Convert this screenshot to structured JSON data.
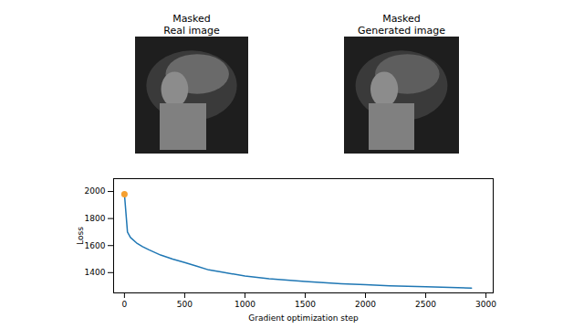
{
  "images": [
    {
      "title_lines": [
        "Masked",
        "Real image"
      ]
    },
    {
      "title_lines": [
        "Masked",
        "Generated image"
      ]
    }
  ],
  "chart_data": {
    "type": "line",
    "x_label": "Gradient optimization step",
    "y_label": "Loss",
    "x": [
      0,
      25,
      50,
      100,
      150,
      200,
      300,
      400,
      500,
      600,
      700,
      800,
      1000,
      1200,
      1500,
      1800,
      2000,
      2200,
      2500,
      2700,
      2880
    ],
    "series": [
      {
        "name": "Loss",
        "color": "#1f77b4",
        "values": [
          1980,
          1700,
          1660,
          1620,
          1592,
          1570,
          1530,
          1500,
          1475,
          1448,
          1420,
          1405,
          1375,
          1355,
          1335,
          1318,
          1310,
          1303,
          1295,
          1290,
          1285
        ]
      }
    ],
    "current_point": {
      "x": 0,
      "y": 1980,
      "color": "#f5a030"
    },
    "xlim": [
      -90,
      3060
    ],
    "xticks": [
      0,
      500,
      1000,
      1500,
      2000,
      2500,
      3000
    ],
    "ylim": [
      1250,
      2095
    ],
    "yticks": [
      1400,
      1600,
      1800,
      2000
    ],
    "grid": false
  }
}
